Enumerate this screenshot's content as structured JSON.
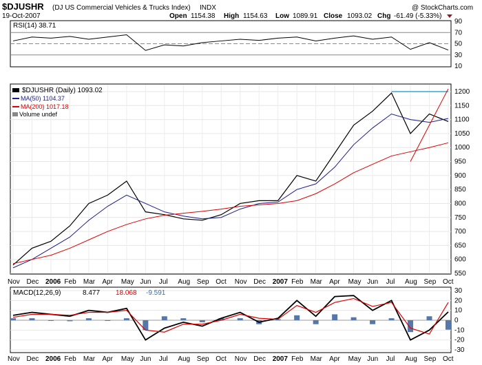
{
  "header": {
    "symbol": "$DJUSHR",
    "name": "(DJ US Commercial Vehicles & Trucks Index)",
    "exchange": "INDX",
    "date": "19-Oct-2007",
    "copyright": "@ StockCharts.com",
    "quote": {
      "open_label": "Open",
      "open": "1154.38",
      "high_label": "High",
      "high": "1154.63",
      "low_label": "Low",
      "low": "1089.91",
      "close_label": "Close",
      "close": "1093.02",
      "chg_label": "Chg",
      "chg": "-61.49 (-5.33%)"
    }
  },
  "colors": {
    "price": "#000000",
    "ma50": "#1a1a8c",
    "ma200": "#dd0000",
    "trend": "#33aacc",
    "macd": "#000000",
    "signal": "#dd0000",
    "hist": "#5577aa",
    "rsi_fill": "#5a8a5a"
  },
  "chart_data": [
    {
      "type": "line",
      "title": "RSI(14) 38.71",
      "legend": [
        "RSI(14) 38.71"
      ],
      "yticks": [
        10,
        30,
        50,
        70,
        90
      ],
      "ylim": [
        10,
        90
      ],
      "reference_lines": [
        30,
        50,
        70
      ],
      "x": [
        "2005-11",
        "2005-12",
        "2006-01",
        "2006-02",
        "2006-03",
        "2006-04",
        "2006-05",
        "2006-06",
        "2006-07",
        "2006-08",
        "2006-09",
        "2006-10",
        "2006-11",
        "2006-12",
        "2007-01",
        "2007-02",
        "2007-03",
        "2007-04",
        "2007-05",
        "2007-06",
        "2007-07",
        "2007-08",
        "2007-09",
        "2007-10"
      ],
      "values": [
        55,
        62,
        60,
        63,
        58,
        62,
        66,
        38,
        48,
        46,
        52,
        55,
        58,
        56,
        60,
        62,
        55,
        60,
        64,
        58,
        62,
        40,
        52,
        38.71
      ]
    },
    {
      "type": "line",
      "title": "$DJUSHR (Daily) 1093.02",
      "legend": [
        "$DJUSHR (Daily) 1093.02",
        "MA(50) 1104.37",
        "MA(200) 1017.18",
        "Volume undef"
      ],
      "ylim": [
        550,
        1200
      ],
      "yticks": [
        550,
        600,
        650,
        700,
        750,
        800,
        850,
        900,
        950,
        1000,
        1050,
        1100,
        1150,
        1200
      ],
      "x_labels": [
        "Nov",
        "Dec",
        "2006",
        "Feb",
        "Mar",
        "Apr",
        "May",
        "Jun",
        "Jul",
        "Aug",
        "Sep",
        "Oct",
        "Nov",
        "Dec",
        "2007",
        "Feb",
        "Mar",
        "Apr",
        "May",
        "Jun",
        "Jul",
        "Aug",
        "Sep",
        "Oct"
      ],
      "x": [
        "2005-11",
        "2005-12",
        "2006-01",
        "2006-02",
        "2006-03",
        "2006-04",
        "2006-05",
        "2006-06",
        "2006-07",
        "2006-08",
        "2006-09",
        "2006-10",
        "2006-11",
        "2006-12",
        "2007-01",
        "2007-02",
        "2007-03",
        "2007-04",
        "2007-05",
        "2007-06",
        "2007-07",
        "2007-08",
        "2007-09",
        "2007-10"
      ],
      "series": [
        {
          "name": "$DJUSHR",
          "values": [
            580,
            640,
            665,
            720,
            800,
            830,
            880,
            770,
            760,
            745,
            740,
            760,
            800,
            810,
            810,
            900,
            880,
            980,
            1080,
            1130,
            1195,
            1050,
            1120,
            1093
          ]
        },
        {
          "name": "MA(50)",
          "values": [
            570,
            600,
            640,
            680,
            740,
            790,
            830,
            800,
            770,
            755,
            745,
            750,
            780,
            800,
            805,
            850,
            870,
            930,
            1010,
            1070,
            1120,
            1100,
            1090,
            1104
          ]
        },
        {
          "name": "MA(200)",
          "values": [
            585,
            600,
            615,
            640,
            670,
            700,
            725,
            745,
            758,
            765,
            772,
            780,
            790,
            795,
            800,
            810,
            835,
            870,
            910,
            940,
            970,
            985,
            1000,
            1017
          ]
        }
      ],
      "annotations": [
        {
          "type": "horizontal_line",
          "value": 1200,
          "from": "2007-07",
          "to": "2007-10"
        },
        {
          "type": "trendline",
          "from": [
            "2007-08",
            950
          ],
          "to": [
            "2007-10",
            1210
          ]
        }
      ]
    },
    {
      "type": "line",
      "title": "MACD(12,26,9)",
      "legend": [
        "MACD(12,26,9)",
        "8.477",
        "18.068",
        "-9.591"
      ],
      "ylim": [
        -30,
        30
      ],
      "yticks": [
        -30,
        -20,
        -10,
        0,
        10,
        20,
        30
      ],
      "x_labels": [
        "Nov",
        "Dec",
        "2006",
        "Feb",
        "Mar",
        "Apr",
        "May",
        "Jun",
        "Jul",
        "Aug",
        "Sep",
        "Oct",
        "Nov",
        "Dec",
        "2007",
        "Feb",
        "Mar",
        "Apr",
        "May",
        "Jun",
        "Jul",
        "Aug",
        "Sep",
        "Oct"
      ],
      "x": [
        "2005-11",
        "2005-12",
        "2006-01",
        "2006-02",
        "2006-03",
        "2006-04",
        "2006-05",
        "2006-06",
        "2006-07",
        "2006-08",
        "2006-09",
        "2006-10",
        "2006-11",
        "2006-12",
        "2007-01",
        "2007-02",
        "2007-03",
        "2007-04",
        "2007-05",
        "2007-06",
        "2007-07",
        "2007-08",
        "2007-09",
        "2007-10"
      ],
      "series": [
        {
          "name": "MACD",
          "values": [
            5,
            8,
            6,
            4,
            10,
            8,
            12,
            -20,
            -8,
            -2,
            -6,
            2,
            8,
            -2,
            2,
            20,
            4,
            24,
            25,
            10,
            20,
            -20,
            -10,
            8.477
          ]
        },
        {
          "name": "Signal",
          "values": [
            3,
            6,
            6,
            5,
            8,
            8,
            10,
            -10,
            -12,
            -4,
            -4,
            0,
            6,
            2,
            1,
            15,
            8,
            18,
            22,
            14,
            18,
            -8,
            -14,
            18.068
          ]
        },
        {
          "name": "Histogram",
          "values": [
            2,
            2,
            0,
            -1,
            2,
            0,
            2,
            -10,
            4,
            2,
            -2,
            2,
            2,
            -4,
            1,
            5,
            -4,
            6,
            3,
            -4,
            2,
            -12,
            4,
            -9.591
          ]
        }
      ]
    }
  ]
}
